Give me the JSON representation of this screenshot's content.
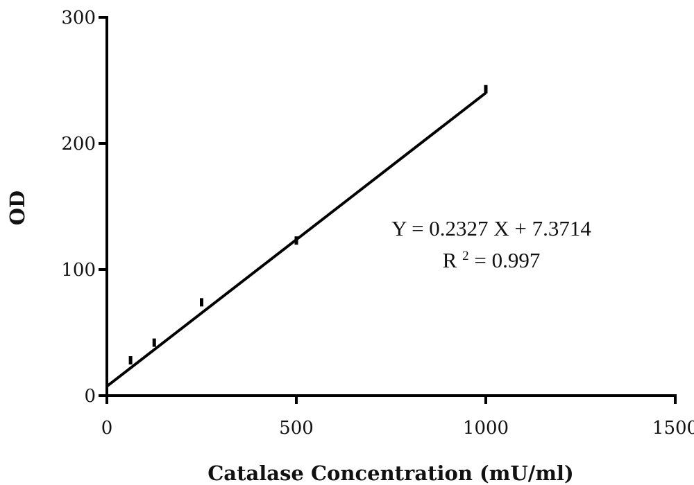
{
  "chart_data": {
    "type": "scatter",
    "xlabel": "Catalase Concentration (mU/ml)",
    "ylabel": "OD",
    "xlim": [
      0,
      1500
    ],
    "ylim": [
      0,
      300
    ],
    "x_ticks": [
      "0",
      "500",
      "1000",
      "1500"
    ],
    "y_ticks": [
      "0",
      "100",
      "200",
      "300"
    ],
    "x_tick_values": [
      0,
      500,
      1000,
      1500
    ],
    "y_tick_values": [
      0,
      100,
      200,
      300
    ],
    "series": [
      {
        "x": [
          62.5,
          125,
          250,
          500,
          1000
        ],
        "y": [
          28,
          42,
          74,
          123,
          243
        ]
      }
    ],
    "fit_line": {
      "slope": 0.2327,
      "intercept": 7.3714,
      "x_range": [
        0,
        1000
      ]
    },
    "annotations": {
      "equation": "Y = 0.2327 X + 7.3714",
      "r2_prefix": "R",
      "r2_sup": "2",
      "r2_value": " = 0.997"
    },
    "grid": false,
    "legend": "none"
  }
}
